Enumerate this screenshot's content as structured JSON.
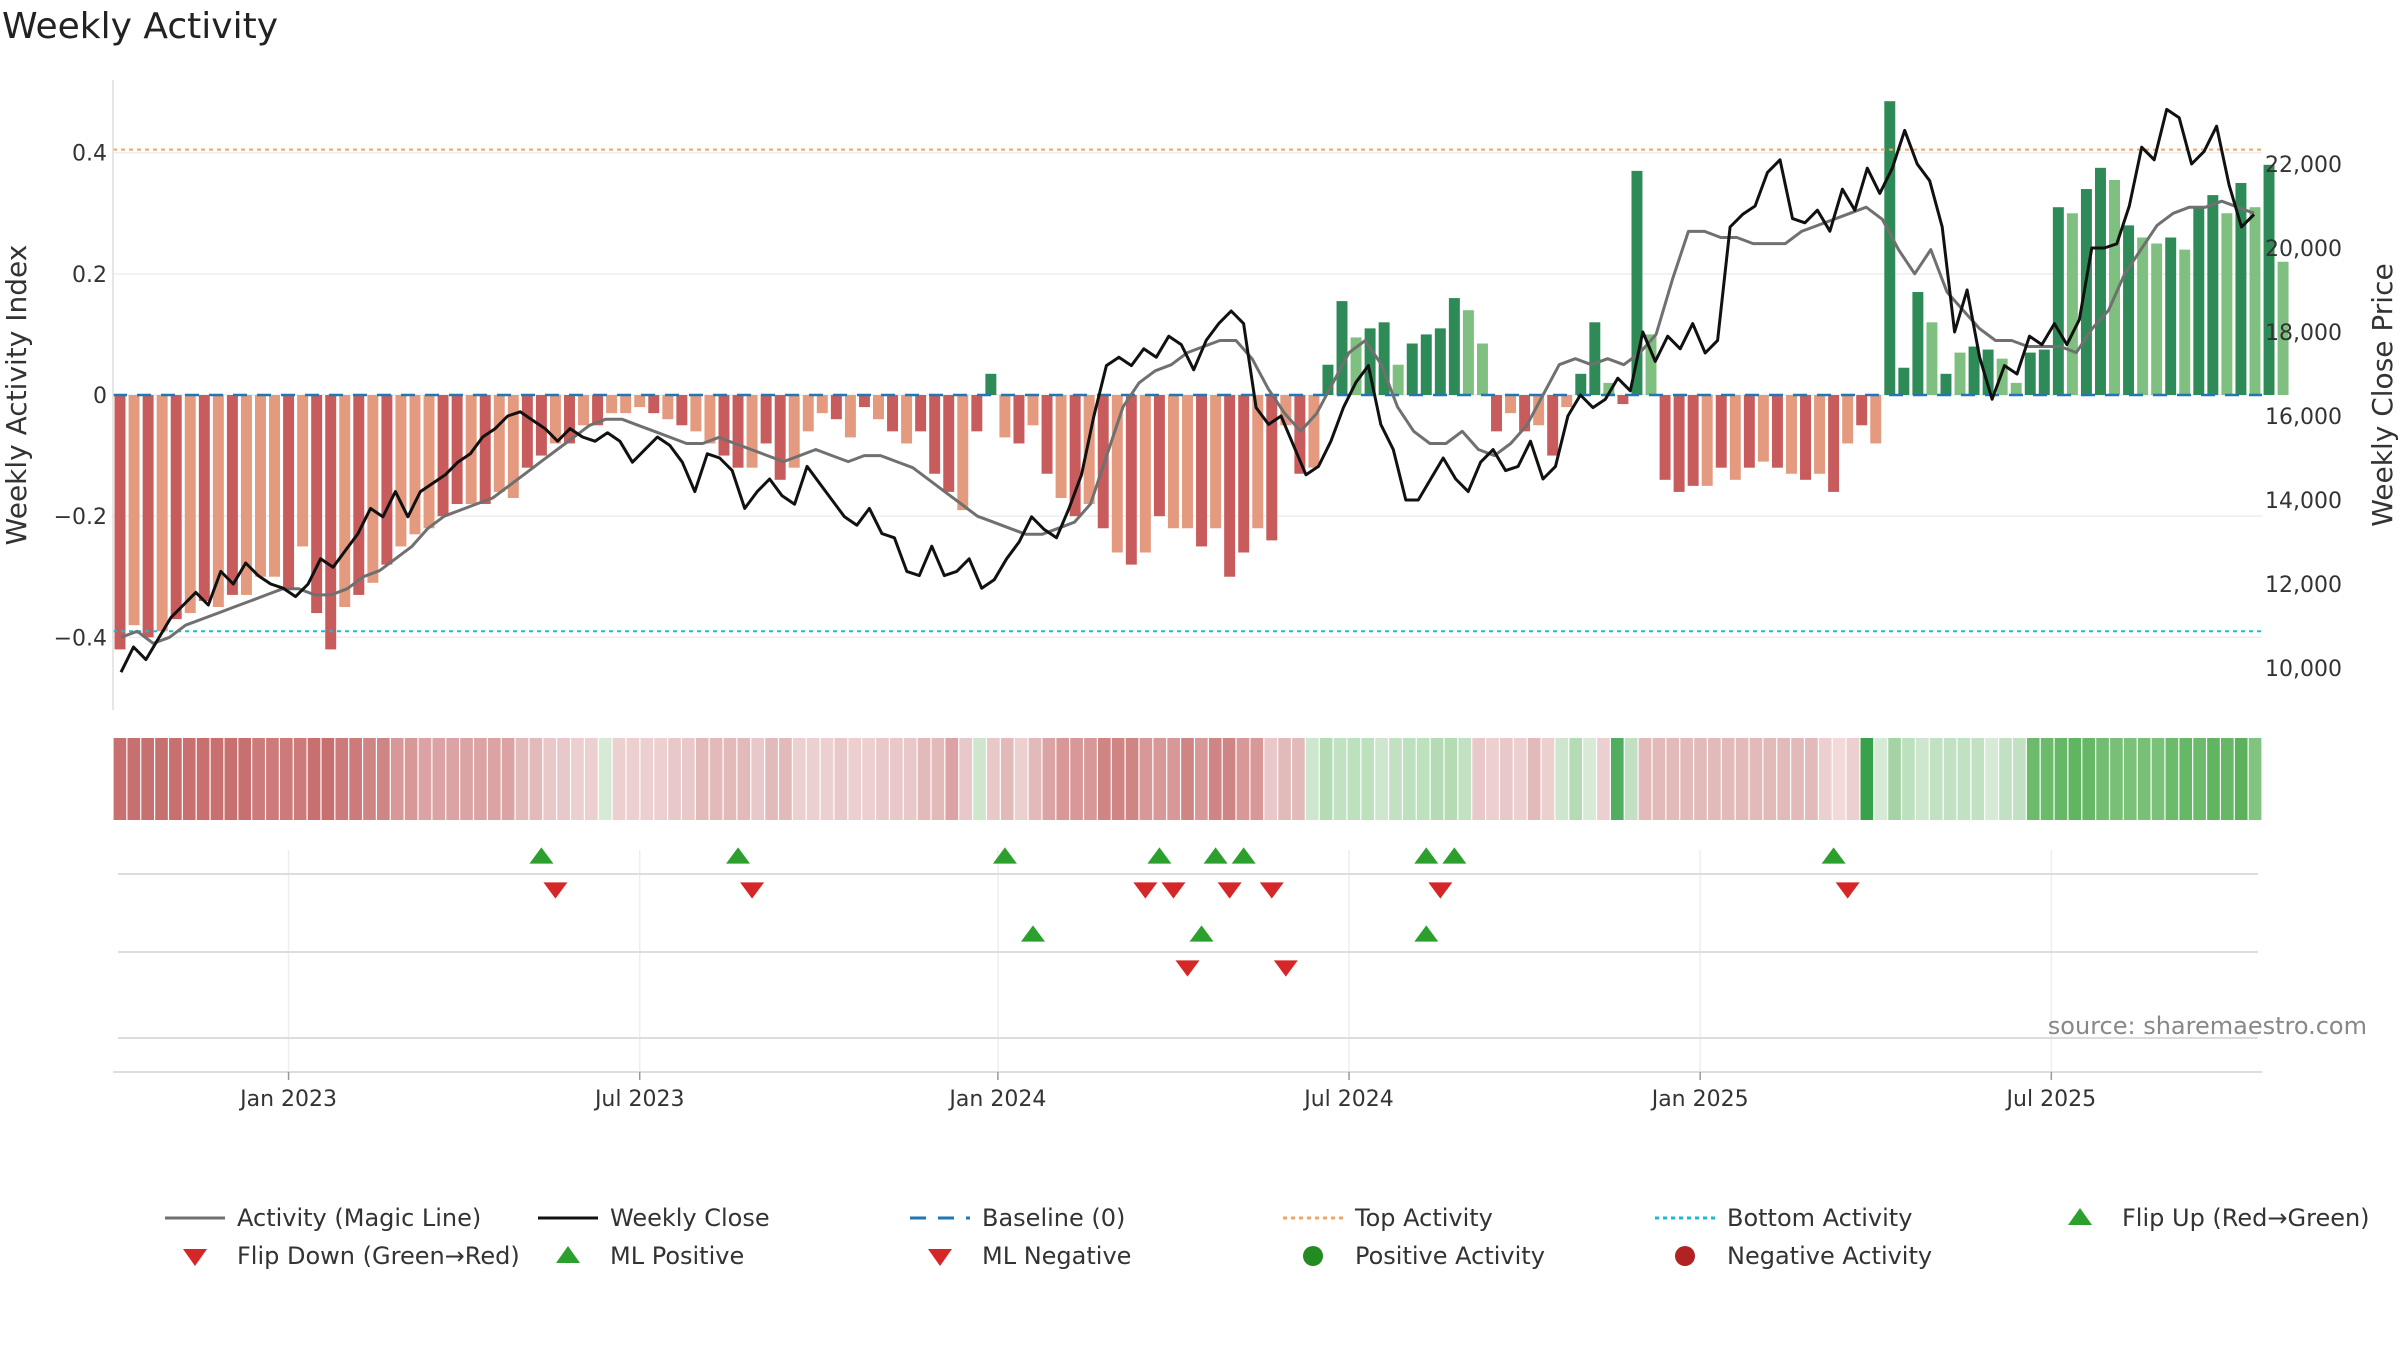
{
  "chart_data": {
    "type": "bar",
    "title": "Weekly Activity",
    "ylabel": "Weekly Activity Index",
    "y2label": "Weekly Close Price",
    "ylim": [
      -0.52,
      0.52
    ],
    "y2lim": [
      9000,
      24000
    ],
    "yticks": [
      -0.4,
      -0.2,
      0,
      0.2,
      0.4
    ],
    "ytick_labels": [
      "−0.4",
      "−0.2",
      "0",
      "0.2",
      "0.4"
    ],
    "y2ticks": [
      10000,
      12000,
      14000,
      16000,
      18000,
      20000,
      22000
    ],
    "y2tick_labels": [
      "10,000",
      "12,000",
      "14,000",
      "16,000",
      "18,000",
      "20,000",
      "22,000"
    ],
    "x_start": "2022-10-10",
    "week_count": 153,
    "xtick_labels": [
      "Jan 2023",
      "Jul 2023",
      "Jan 2024",
      "Jul 2024",
      "Jan 2025",
      "Jul 2025"
    ],
    "xtick_week_index": [
      12,
      37,
      62.5,
      87.5,
      112.5,
      137.5
    ],
    "top_activity": 0.405,
    "bottom_activity": -0.39,
    "baseline": 0,
    "series": [
      {
        "name": "Weekly Activity Index",
        "kind": "bar",
        "values": [
          -0.42,
          -0.38,
          -0.4,
          -0.39,
          -0.37,
          -0.36,
          -0.34,
          -0.35,
          -0.33,
          -0.33,
          -0.3,
          -0.3,
          -0.32,
          -0.25,
          -0.36,
          -0.42,
          -0.35,
          -0.33,
          -0.31,
          -0.28,
          -0.25,
          -0.23,
          -0.22,
          -0.2,
          -0.18,
          -0.18,
          -0.18,
          -0.16,
          -0.17,
          -0.12,
          -0.1,
          -0.08,
          -0.08,
          -0.05,
          -0.05,
          -0.03,
          -0.03,
          -0.02,
          -0.03,
          -0.04,
          -0.05,
          -0.06,
          -0.08,
          -0.1,
          -0.12,
          -0.12,
          -0.08,
          -0.14,
          -0.12,
          -0.06,
          -0.03,
          -0.04,
          -0.07,
          -0.02,
          -0.04,
          -0.06,
          -0.08,
          -0.06,
          -0.13,
          -0.16,
          -0.19,
          -0.06,
          0.035,
          -0.07,
          -0.08,
          -0.05,
          -0.13,
          -0.17,
          -0.2,
          -0.18,
          -0.22,
          -0.26,
          -0.28,
          -0.26,
          -0.2,
          -0.22,
          -0.22,
          -0.25,
          -0.22,
          -0.3,
          -0.26,
          -0.22,
          -0.24,
          -0.05,
          -0.13,
          -0.12,
          0.05,
          0.155,
          0.095,
          0.11,
          0.12,
          0.05,
          0.085,
          0.1,
          0.11,
          0.16,
          0.14,
          0.085,
          -0.06,
          -0.03,
          -0.06,
          -0.05,
          -0.1,
          -0.02,
          0.035,
          0.12,
          0.02,
          -0.015,
          0.37,
          0.1,
          -0.14,
          -0.16,
          -0.15,
          -0.15,
          -0.12,
          -0.14,
          -0.12,
          -0.11,
          -0.12,
          -0.13,
          -0.14,
          -0.13,
          -0.16,
          -0.08,
          -0.05,
          -0.08,
          0.485,
          0.045,
          0.17,
          0.12,
          0.035,
          0.07,
          0.08,
          0.075,
          0.06,
          0.02,
          0.07,
          0.075,
          0.31,
          0.3,
          0.34,
          0.375,
          0.355,
          0.28,
          0.26,
          0.25,
          0.26,
          0.24,
          0.31,
          0.33,
          0.3,
          0.35,
          0.31,
          0.38,
          0.22
        ],
        "colors": [
          "#c85c5c",
          "#e39a7f",
          "#c85c5c",
          "#e39a7f",
          "#c85c5c",
          "#e39a7f",
          "#c85c5c",
          "#e39a7f",
          "#c85c5c",
          "#e39a7f",
          "#e39a7f",
          "#e39a7f",
          "#c85c5c",
          "#e39a7f",
          "#c85c5c",
          "#c85c5c",
          "#e39a7f",
          "#c85c5c",
          "#e39a7f",
          "#c85c5c",
          "#e39a7f",
          "#e39a7f",
          "#e39a7f",
          "#c85c5c",
          "#c85c5c",
          "#e39a7f",
          "#c85c5c",
          "#e39a7f",
          "#e39a7f",
          "#c85c5c",
          "#c85c5c",
          "#e39a7f",
          "#c85c5c",
          "#e39a7f",
          "#c85c5c",
          "#e39a7f",
          "#e39a7f",
          "#e39a7f",
          "#c85c5c",
          "#e39a7f",
          "#c85c5c",
          "#e39a7f",
          "#e39a7f",
          "#c85c5c",
          "#c85c5c",
          "#e39a7f",
          "#c85c5c",
          "#c85c5c",
          "#e39a7f",
          "#e39a7f",
          "#e39a7f",
          "#c85c5c",
          "#e39a7f",
          "#c85c5c",
          "#e39a7f",
          "#c85c5c",
          "#e39a7f",
          "#c85c5c",
          "#c85c5c",
          "#c85c5c",
          "#e39a7f",
          "#c85c5c",
          "#2e8b57",
          "#e39a7f",
          "#c85c5c",
          "#e39a7f",
          "#c85c5c",
          "#e39a7f",
          "#c85c5c",
          "#e39a7f",
          "#c85c5c",
          "#e39a7f",
          "#c85c5c",
          "#e39a7f",
          "#c85c5c",
          "#e39a7f",
          "#e39a7f",
          "#c85c5c",
          "#e39a7f",
          "#c85c5c",
          "#c85c5c",
          "#e39a7f",
          "#c85c5c",
          "#e39a7f",
          "#c85c5c",
          "#e39a7f",
          "#2e8b57",
          "#2e8b57",
          "#7fbf7f",
          "#2e8b57",
          "#2e8b57",
          "#7fbf7f",
          "#2e8b57",
          "#2e8b57",
          "#2e8b57",
          "#2e8b57",
          "#7fbf7f",
          "#7fbf7f",
          "#c85c5c",
          "#e39a7f",
          "#c85c5c",
          "#e39a7f",
          "#c85c5c",
          "#e39a7f",
          "#2e8b57",
          "#2e8b57",
          "#7fbf7f",
          "#c85c5c",
          "#2e8b57",
          "#7fbf7f",
          "#c85c5c",
          "#c85c5c",
          "#c85c5c",
          "#e39a7f",
          "#c85c5c",
          "#e39a7f",
          "#c85c5c",
          "#e39a7f",
          "#c85c5c",
          "#e39a7f",
          "#c85c5c",
          "#e39a7f",
          "#c85c5c",
          "#e39a7f",
          "#c85c5c",
          "#e39a7f",
          "#2e8b57",
          "#2e8b57",
          "#2e8b57",
          "#7fbf7f",
          "#2e8b57",
          "#7fbf7f",
          "#2e8b57",
          "#2e8b57",
          "#7fbf7f",
          "#7fbf7f",
          "#2e8b57",
          "#2e8b57",
          "#2e8b57",
          "#7fbf7f",
          "#2e8b57",
          "#2e8b57",
          "#7fbf7f",
          "#2e8b57",
          "#7fbf7f",
          "#7fbf7f",
          "#2e8b57",
          "#7fbf7f",
          "#2e8b57",
          "#2e8b57",
          "#7fbf7f",
          "#2e8b57",
          "#7fbf7f",
          "#2e8b57",
          "#7fbf7f"
        ]
      },
      {
        "name": "Weekly Close",
        "kind": "line",
        "axis": "right",
        "color": "#111111",
        "values": [
          9900,
          10500,
          10200,
          10700,
          11200,
          11500,
          11800,
          11500,
          12300,
          12000,
          12500,
          12200,
          12000,
          11900,
          11700,
          12000,
          12600,
          12400,
          12800,
          13200,
          13800,
          13600,
          14200,
          13600,
          14200,
          14400,
          14600,
          14900,
          15100,
          15500,
          15700,
          16000,
          16100,
          15900,
          15700,
          15400,
          15700,
          15500,
          15400,
          15600,
          15400,
          14900,
          15200,
          15500,
          15300,
          14900,
          14200,
          15100,
          15000,
          14700,
          13800,
          14200,
          14500,
          14100,
          13900,
          14800,
          14400,
          14000,
          13600,
          13400,
          13800,
          13200,
          13100,
          12300,
          12200,
          12900,
          12200,
          12300,
          12600,
          11900,
          12100,
          12600,
          13000,
          13600,
          13300,
          13100,
          13800,
          14600,
          16000,
          17200,
          17400,
          17200,
          17600,
          17400,
          17900,
          17700,
          17100,
          17800,
          18200,
          18500,
          18200,
          16200,
          15800,
          16000,
          15300,
          14600,
          14800,
          15400,
          16200,
          16800,
          17200,
          15800,
          15200,
          14000,
          14000,
          14500,
          15000,
          14500,
          14200,
          14900,
          15200,
          14700,
          14800,
          15400,
          14500,
          14800,
          16000,
          16500,
          16200,
          16400,
          16900,
          16600,
          18000,
          17300,
          17900,
          17600,
          18200,
          17500,
          17800,
          20500,
          20800,
          21000,
          21800,
          22100,
          20700,
          20600,
          20900,
          20400,
          21400,
          20900,
          21900,
          21300,
          21900,
          22800,
          22000,
          21600,
          20500,
          18000,
          19000,
          17400,
          16400,
          17200,
          17000,
          17900,
          17700,
          18200,
          17700,
          18300,
          20000,
          20000,
          20100,
          21000,
          22400,
          22100,
          23300,
          23100,
          22000,
          22300,
          22900,
          21500,
          20500,
          20800
        ],
        "x_mode": "stretch"
      },
      {
        "name": "Activity (Magic Line)",
        "kind": "line",
        "axis": "left",
        "color": "#707070",
        "values": [
          -0.4,
          -0.39,
          -0.41,
          -0.4,
          -0.38,
          -0.37,
          -0.36,
          -0.35,
          -0.34,
          -0.33,
          -0.32,
          -0.32,
          -0.33,
          -0.33,
          -0.32,
          -0.3,
          -0.29,
          -0.27,
          -0.25,
          -0.22,
          -0.2,
          -0.19,
          -0.18,
          -0.17,
          -0.15,
          -0.13,
          -0.11,
          -0.09,
          -0.07,
          -0.05,
          -0.04,
          -0.04,
          -0.05,
          -0.06,
          -0.07,
          -0.08,
          -0.08,
          -0.07,
          -0.08,
          -0.09,
          -0.1,
          -0.11,
          -0.1,
          -0.09,
          -0.1,
          -0.11,
          -0.1,
          -0.1,
          -0.11,
          -0.12,
          -0.14,
          -0.16,
          -0.18,
          -0.2,
          -0.21,
          -0.22,
          -0.23,
          -0.23,
          -0.22,
          -0.21,
          -0.18,
          -0.1,
          -0.02,
          0.02,
          0.04,
          0.05,
          0.07,
          0.08,
          0.09,
          0.09,
          0.06,
          0.01,
          -0.03,
          -0.06,
          -0.03,
          0.02,
          0.07,
          0.09,
          0.05,
          -0.02,
          -0.06,
          -0.08,
          -0.08,
          -0.06,
          -0.09,
          -0.1,
          -0.08,
          -0.05,
          0.0,
          0.05,
          0.06,
          0.05,
          0.06,
          0.05,
          0.07,
          0.1,
          0.19,
          0.27,
          0.27,
          0.26,
          0.26,
          0.25,
          0.25,
          0.25,
          0.27,
          0.28,
          0.29,
          0.3,
          0.31,
          0.29,
          0.24,
          0.2,
          0.24,
          0.17,
          0.14,
          0.11,
          0.09,
          0.09,
          0.08,
          0.08,
          0.08,
          0.07,
          0.11,
          0.14,
          0.2,
          0.24,
          0.28,
          0.3,
          0.31,
          0.31,
          0.32,
          0.31,
          0.3
        ],
        "x_start_index": 0,
        "x_stretch": true
      },
      {
        "name": "Heat Strip",
        "kind": "strip",
        "colors": [
          "#c87070",
          "#c87070",
          "#c87070",
          "#c87070",
          "#c87070",
          "#c87070",
          "#c87070",
          "#c87070",
          "#c87070",
          "#c87070",
          "#cc7a7a",
          "#cc7a7a",
          "#cc7a7a",
          "#cc7a7a",
          "#c87070",
          "#c87070",
          "#cc7a7a",
          "#cc7a7a",
          "#d08585",
          "#d08585",
          "#d89898",
          "#d89898",
          "#dba3a3",
          "#dba3a3",
          "#dba3a3",
          "#dba3a3",
          "#dba3a3",
          "#dba3a3",
          "#dba3a3",
          "#e3baba",
          "#e3baba",
          "#e8c8c8",
          "#e8c8c8",
          "#eccfcf",
          "#eccfcf",
          "#d6ead6",
          "#eccfcf",
          "#eccfcf",
          "#eccfcf",
          "#eccfcf",
          "#e8c8c8",
          "#e8c8c8",
          "#e3baba",
          "#e3baba",
          "#e3baba",
          "#e3baba",
          "#e8c8c8",
          "#e3baba",
          "#e3baba",
          "#eccfcf",
          "#eccfcf",
          "#eccfcf",
          "#e8c8c8",
          "#eccfcf",
          "#eccfcf",
          "#e8c8c8",
          "#e8c8c8",
          "#e8c8c8",
          "#e3baba",
          "#e3baba",
          "#dba3a3",
          "#e8c8c8",
          "#cde6cd",
          "#e8c8c8",
          "#e3baba",
          "#eccfcf",
          "#e3baba",
          "#dba3a3",
          "#d89898",
          "#d89898",
          "#d89898",
          "#d08585",
          "#d08585",
          "#d08585",
          "#d89898",
          "#d89898",
          "#d89898",
          "#d08585",
          "#d89898",
          "#d08585",
          "#d08585",
          "#d89898",
          "#d89898",
          "#e8c8c8",
          "#e3baba",
          "#e3baba",
          "#cde6cd",
          "#b5dbb5",
          "#c2e0c2",
          "#bde0bd",
          "#bde0bd",
          "#cde6cd",
          "#c2e0c2",
          "#bde0bd",
          "#bde0bd",
          "#b5dbb5",
          "#b5dbb5",
          "#c2e0c2",
          "#e8c8c8",
          "#eccfcf",
          "#e8c8c8",
          "#eccfcf",
          "#e3baba",
          "#eccfcf",
          "#cde6cd",
          "#b5dbb5",
          "#d6ead6",
          "#eccfcf",
          "#4fae5f",
          "#c2e0c2",
          "#e3baba",
          "#e3baba",
          "#e3baba",
          "#e3baba",
          "#e3baba",
          "#e3baba",
          "#e3baba",
          "#e3baba",
          "#e3baba",
          "#e3baba",
          "#e3baba",
          "#e3baba",
          "#e3baba",
          "#eccfcf",
          "#f2dada",
          "#eccfcf",
          "#37a24b",
          "#d6ead6",
          "#a5d3a5",
          "#bde0bd",
          "#cde6cd",
          "#c2e0c2",
          "#c2e0c2",
          "#c2e0c2",
          "#c2e0c2",
          "#d6ead6",
          "#c2e0c2",
          "#c2e0c2",
          "#6cba6c",
          "#6cba6c",
          "#66b866",
          "#60b560",
          "#66b866",
          "#72bd72",
          "#78c078",
          "#7ac27a",
          "#78c078",
          "#7ac27a",
          "#6cba6c",
          "#66b866",
          "#6cba6c",
          "#60b560",
          "#66b866",
          "#5cb25c",
          "#80c480"
        ]
      },
      {
        "name": "Flip Up (Red→Green)",
        "kind": "marker",
        "week_index": [
          30,
          44,
          63,
          74,
          78,
          80,
          93,
          95,
          122
        ]
      },
      {
        "name": "Flip Down (Green→Red)",
        "kind": "marker",
        "week_index": [
          31,
          45,
          73,
          75,
          79,
          82,
          94,
          123
        ]
      },
      {
        "name": "ML Positive",
        "kind": "marker",
        "week_index": [
          65,
          77,
          93
        ]
      },
      {
        "name": "ML Negative",
        "kind": "marker",
        "week_index": [
          76,
          83
        ]
      }
    ],
    "legend": [
      {
        "label": "Activity (Magic Line)",
        "symbol": "line",
        "color": "#707070"
      },
      {
        "label": "Weekly Close",
        "symbol": "line",
        "color": "#111111"
      },
      {
        "label": "Baseline (0)",
        "symbol": "dash",
        "color": "#1f77b4"
      },
      {
        "label": "Top Activity",
        "symbol": "dot",
        "color": "#f4a460"
      },
      {
        "label": "Bottom Activity",
        "symbol": "dot",
        "color": "#17becf"
      },
      {
        "label": "Flip Up (Red→Green)",
        "symbol": "up",
        "color": "#2ca02c"
      },
      {
        "label": "Flip Down (Green→Red)",
        "symbol": "down",
        "color": "#d62728"
      },
      {
        "label": "ML Positive",
        "symbol": "up",
        "color": "#2ca02c"
      },
      {
        "label": "ML Negative",
        "symbol": "down",
        "color": "#d62728"
      },
      {
        "label": "Positive Activity",
        "symbol": "circle",
        "color": "#228b22"
      },
      {
        "label": "Negative Activity",
        "symbol": "circle",
        "color": "#b22222"
      }
    ],
    "legend_position": "bottom",
    "source": "source: sharemaestro.com"
  }
}
